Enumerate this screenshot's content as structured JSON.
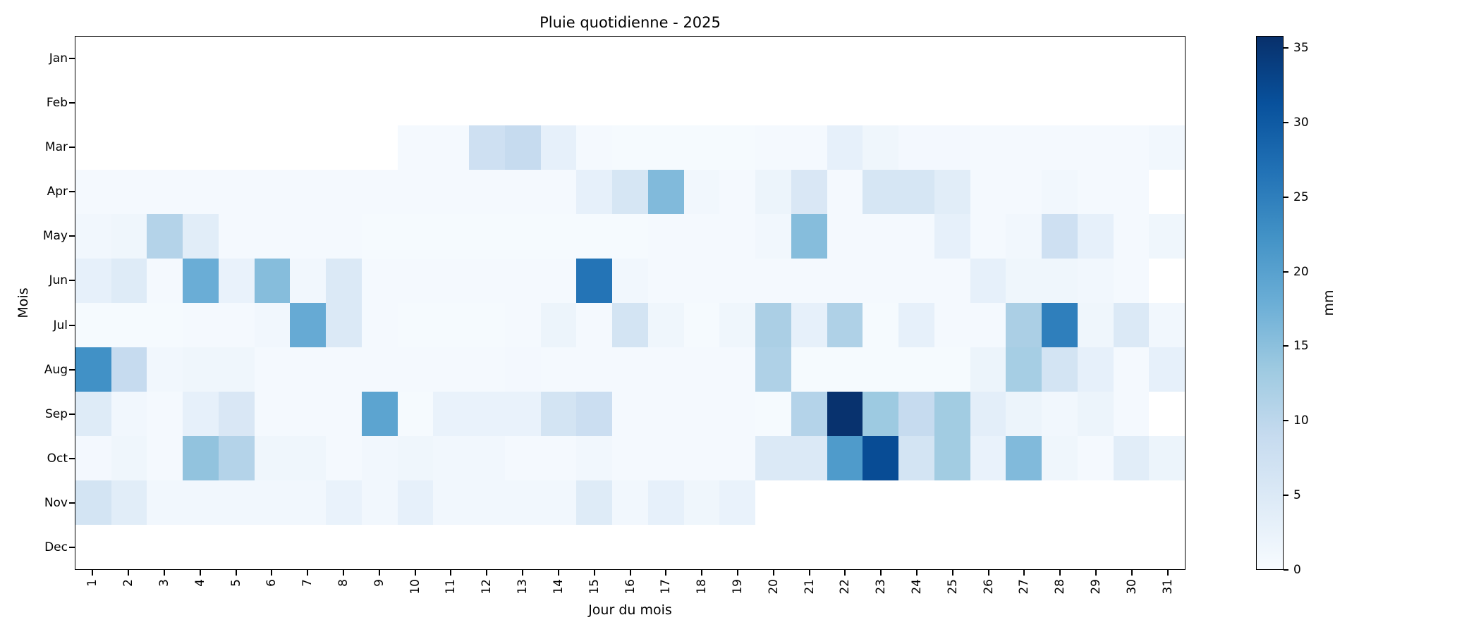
{
  "chart_data": {
    "type": "heatmap",
    "title": "Pluie quotidienne - 2025",
    "xlabel": "Jour du mois",
    "ylabel": "Mois",
    "colorbar_label": "mm",
    "colorbar_ticks": [
      0,
      5,
      10,
      15,
      20,
      25,
      30,
      35
    ],
    "vmin": 0,
    "vmax": 35.8,
    "colormap": "Blues",
    "missing_color": "#ffffff",
    "colormap_anchors": [
      {
        "t": 0.0,
        "rgb": [
          247,
          251,
          255
        ]
      },
      {
        "t": 0.125,
        "rgb": [
          222,
          235,
          247
        ]
      },
      {
        "t": 0.25,
        "rgb": [
          198,
          219,
          239
        ]
      },
      {
        "t": 0.375,
        "rgb": [
          158,
          202,
          225
        ]
      },
      {
        "t": 0.5,
        "rgb": [
          107,
          174,
          214
        ]
      },
      {
        "t": 0.625,
        "rgb": [
          66,
          146,
          198
        ]
      },
      {
        "t": 0.75,
        "rgb": [
          33,
          113,
          181
        ]
      },
      {
        "t": 0.875,
        "rgb": [
          8,
          81,
          156
        ]
      },
      {
        "t": 1.0,
        "rgb": [
          8,
          48,
          107
        ]
      }
    ],
    "x_tick_labels": [
      "1",
      "2",
      "3",
      "4",
      "5",
      "6",
      "7",
      "8",
      "9",
      "10",
      "11",
      "12",
      "13",
      "14",
      "15",
      "16",
      "17",
      "18",
      "19",
      "20",
      "21",
      "22",
      "23",
      "24",
      "25",
      "26",
      "27",
      "28",
      "29",
      "30",
      "31"
    ],
    "y_tick_labels": [
      "Jan",
      "Feb",
      "Mar",
      "Apr",
      "May",
      "Jun",
      "Jul",
      "Aug",
      "Sep",
      "Oct",
      "Nov",
      "Dec"
    ],
    "rows": [
      {
        "month": "Jan",
        "values": [
          null,
          null,
          null,
          null,
          null,
          null,
          null,
          null,
          null,
          null,
          null,
          null,
          null,
          null,
          null,
          null,
          null,
          null,
          null,
          null,
          null,
          null,
          null,
          null,
          null,
          null,
          null,
          null,
          null,
          null,
          null
        ]
      },
      {
        "month": "Feb",
        "values": [
          null,
          null,
          null,
          null,
          null,
          null,
          null,
          null,
          null,
          null,
          null,
          null,
          null,
          null,
          null,
          null,
          null,
          null,
          null,
          null,
          null,
          null,
          null,
          null,
          null,
          null,
          null,
          null,
          null,
          null,
          null
        ]
      },
      {
        "month": "Mar",
        "values": [
          null,
          null,
          null,
          null,
          null,
          null,
          null,
          null,
          null,
          0.5,
          0.5,
          7.5,
          9,
          3,
          0.5,
          0.3,
          0.3,
          0.3,
          0.3,
          0.5,
          0.5,
          3,
          1.5,
          0.8,
          0.8,
          0.5,
          0.5,
          0.5,
          0.5,
          0.5,
          1
        ]
      },
      {
        "month": "Apr",
        "values": [
          0.5,
          0.5,
          0.5,
          0.5,
          0.5,
          0.5,
          0.5,
          0.5,
          0.5,
          0.5,
          0.5,
          0.5,
          0.5,
          0.5,
          3,
          6,
          16,
          1,
          0.5,
          2,
          5.5,
          0.5,
          6,
          6,
          4,
          0.5,
          0.5,
          1,
          0.5,
          0.5,
          null
        ]
      },
      {
        "month": "May",
        "values": [
          1,
          1.5,
          11,
          4,
          0.5,
          0.5,
          0.5,
          0.5,
          0.3,
          0.3,
          0.3,
          0.3,
          0.3,
          0.3,
          0.3,
          0.3,
          0.5,
          0.5,
          0.5,
          1,
          15.5,
          0.5,
          0.5,
          0.5,
          3,
          0.5,
          1,
          7.5,
          3,
          0.5,
          1.5
        ]
      },
      {
        "month": "Jun",
        "values": [
          3,
          4.5,
          0.5,
          18,
          2.5,
          15.5,
          1,
          5,
          0.5,
          0.5,
          0.5,
          0.5,
          0.5,
          0.5,
          26.5,
          1,
          0.5,
          0.5,
          0.5,
          0.5,
          0.5,
          0.5,
          0.5,
          0.5,
          0.5,
          3,
          1.5,
          1.5,
          1,
          0.5,
          null
        ]
      },
      {
        "month": "Jul",
        "values": [
          0.3,
          0.3,
          0.3,
          0.5,
          0.5,
          1,
          18.5,
          5,
          0.5,
          0.3,
          0.3,
          0.3,
          0.5,
          2,
          0.5,
          6.5,
          1.5,
          0.3,
          1.5,
          12,
          3,
          11.5,
          0.3,
          3,
          0.5,
          0.5,
          12,
          25,
          1.5,
          5,
          1
        ]
      },
      {
        "month": "Aug",
        "values": [
          22.5,
          9,
          1,
          1.5,
          1.5,
          0.5,
          0.5,
          0.5,
          0.5,
          0.5,
          0.5,
          0.5,
          0.8,
          0.5,
          0.5,
          0.5,
          0.5,
          0.5,
          0.5,
          11.5,
          0.3,
          0.3,
          0.3,
          0.3,
          0.3,
          2,
          12.5,
          6.5,
          3,
          0.5,
          3
        ]
      },
      {
        "month": "Sep",
        "values": [
          4.5,
          1,
          0.5,
          3,
          5.5,
          0.5,
          0.5,
          0.5,
          19.5,
          0.3,
          2.5,
          2.5,
          2.5,
          6.5,
          8,
          0.5,
          0.5,
          0.5,
          0.5,
          0.3,
          11,
          35.5,
          13.5,
          9,
          13,
          3.5,
          2,
          1,
          2,
          0.5,
          null
        ]
      },
      {
        "month": "Oct",
        "values": [
          0.8,
          1.5,
          0.5,
          14.5,
          11,
          1.5,
          1.5,
          0.5,
          1,
          1.5,
          1,
          1,
          0.5,
          0.5,
          1,
          0.5,
          0.5,
          0.5,
          0.5,
          5,
          5,
          21,
          32,
          6.5,
          13,
          2.5,
          16,
          1.5,
          0.5,
          4,
          2
        ]
      },
      {
        "month": "Nov",
        "values": [
          6.5,
          4,
          1,
          1,
          1,
          1,
          1,
          2.5,
          1,
          3,
          1,
          1,
          1,
          1,
          4.5,
          1,
          3,
          1.5,
          2.5,
          null,
          null,
          null,
          null,
          null,
          null,
          null,
          null,
          null,
          null,
          null,
          null
        ]
      },
      {
        "month": "Dec",
        "values": [
          null,
          null,
          null,
          null,
          null,
          null,
          null,
          null,
          null,
          null,
          null,
          null,
          null,
          null,
          null,
          null,
          null,
          null,
          null,
          null,
          null,
          null,
          null,
          null,
          null,
          null,
          null,
          null,
          null,
          null,
          null
        ]
      }
    ]
  }
}
